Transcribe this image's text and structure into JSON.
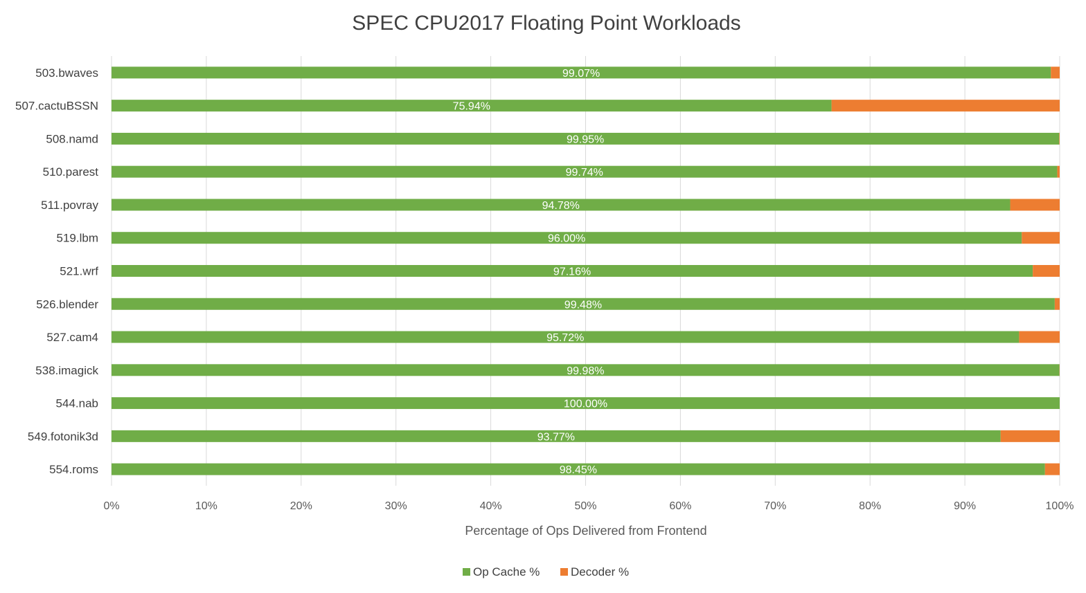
{
  "chart_data": {
    "type": "bar",
    "orientation": "horizontal",
    "stacked": true,
    "title": "SPEC CPU2017 Floating Point Workloads",
    "xlabel": "Percentage of Ops Delivered from Frontend",
    "ylabel": "",
    "xlim": [
      0,
      100
    ],
    "x_ticks": [
      "0%",
      "10%",
      "20%",
      "30%",
      "40%",
      "50%",
      "60%",
      "70%",
      "80%",
      "90%",
      "100%"
    ],
    "grid": true,
    "legend_position": "bottom",
    "categories": [
      "503.bwaves",
      "507.cactuBSSN",
      "508.namd",
      "510.parest",
      "511.povray",
      "519.lbm",
      "521.wrf",
      "526.blender",
      "527.cam4",
      "538.imagick",
      "544.nab",
      "549.fotonik3d",
      "554.roms"
    ],
    "series": [
      {
        "name": "Op Cache %",
        "color": "#70ad47",
        "values": [
          99.07,
          75.94,
          99.95,
          99.74,
          94.78,
          96.0,
          97.16,
          99.48,
          95.72,
          99.98,
          100.0,
          93.77,
          98.45
        ],
        "labels": [
          "99.07%",
          "75.94%",
          "99.95%",
          "99.74%",
          "94.78%",
          "96.00%",
          "97.16%",
          "99.48%",
          "95.72%",
          "99.98%",
          "100.00%",
          "93.77%",
          "98.45%"
        ]
      },
      {
        "name": "Decoder %",
        "color": "#ed7d31",
        "values": [
          0.93,
          24.06,
          0.05,
          0.26,
          5.22,
          4.0,
          2.84,
          0.52,
          4.28,
          0.02,
          0.0,
          6.23,
          1.55
        ]
      }
    ]
  }
}
